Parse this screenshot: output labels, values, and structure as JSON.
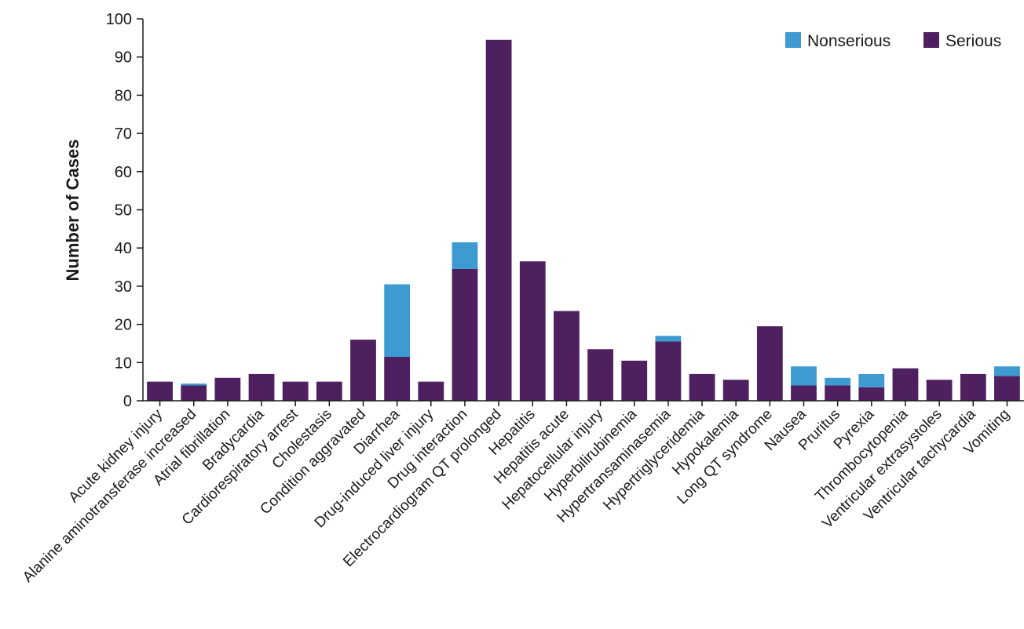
{
  "chart_data": {
    "type": "bar",
    "stacked": true,
    "ylabel": "Number of Cases",
    "xlabel": "",
    "ylim": [
      0,
      100
    ],
    "yticks": [
      0,
      10,
      20,
      30,
      40,
      50,
      60,
      70,
      80,
      90,
      100
    ],
    "grid": false,
    "legend_position": "top-right",
    "categories": [
      "Acute kidney injury",
      "Alanine aminotransferase increased",
      "Atrial fibrillation",
      "Bradycardia",
      "Cardiorespiratory arrest",
      "Cholestasis",
      "Condition aggravated",
      "Diarrhea",
      "Drug-induced liver injury",
      "Drug interaction",
      "Electrocardiogram QT prolonged",
      "Hepatitis",
      "Hepatitis acute",
      "Hepatocellular injury",
      "Hyperbilirubinemia",
      "Hypertransaminasemia",
      "Hypertriglyceridemia",
      "Hypokalemia",
      "Long QT syndrome",
      "Nausea",
      "Pruritus",
      "Pyrexia",
      "Thrombocytopenia",
      "Ventricular extrasystoles",
      "Ventricular tachycardia",
      "Vomiting"
    ],
    "series": [
      {
        "name": "Serious",
        "color": "#4f2060",
        "values": [
          5,
          4,
          6,
          7,
          5,
          5,
          16,
          11.5,
          5,
          34.5,
          94.5,
          36.5,
          23.5,
          13.5,
          10.5,
          15.5,
          7,
          5.5,
          19.5,
          4,
          4,
          3.5,
          8.5,
          5.5,
          7,
          6.5
        ]
      },
      {
        "name": "Nonserious",
        "color": "#3d9bd1",
        "values": [
          0,
          0.5,
          0,
          0,
          0,
          0,
          0,
          19,
          0,
          7,
          0,
          0,
          0,
          0,
          0,
          1.5,
          0,
          0,
          0,
          5,
          2,
          3.5,
          0,
          0,
          0,
          2.5
        ]
      }
    ],
    "legend_order": [
      "Nonserious",
      "Serious"
    ]
  }
}
